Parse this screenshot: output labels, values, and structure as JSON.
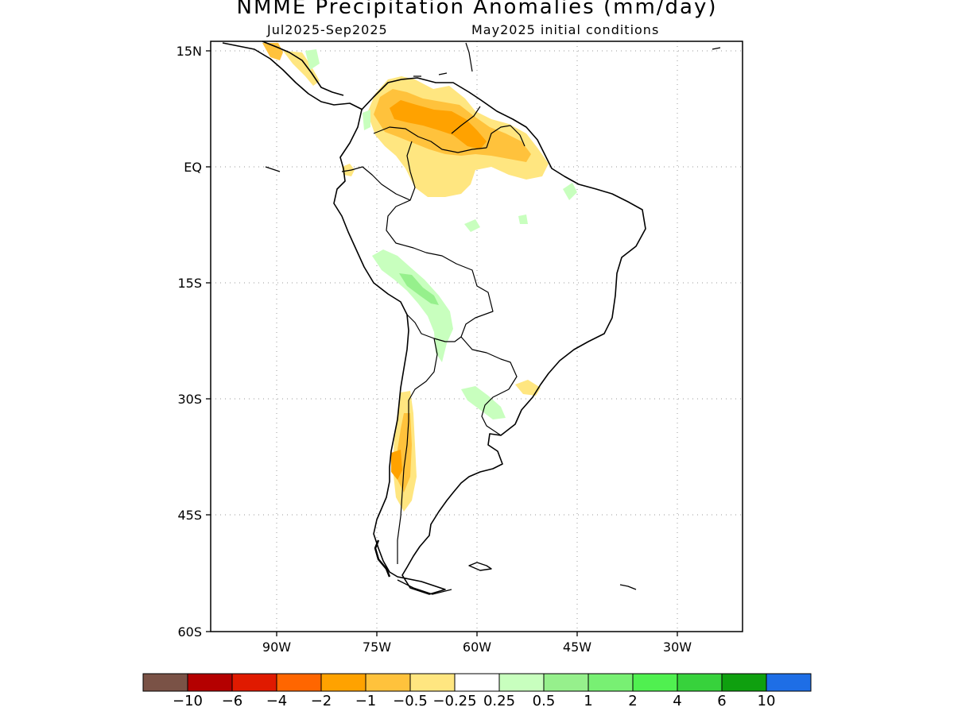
{
  "title": "NMME Precipitation Anomalies (mm/day)",
  "subtitle_left": "Jul2025-Sep2025",
  "subtitle_right": "May2025 initial conditions",
  "lat_labels": [
    "15N",
    "EQ",
    "15S",
    "30S",
    "45S",
    "60S"
  ],
  "lon_labels": [
    "90W",
    "75W",
    "60W",
    "45W",
    "30W"
  ],
  "colorbar": {
    "colors": [
      "#7a5246",
      "#b40000",
      "#e01a00",
      "#ff6600",
      "#ffa200",
      "#ffc23c",
      "#ffe680",
      "#ffffff",
      "#c8ffbe",
      "#96f08c",
      "#78f073",
      "#50f050",
      "#37d23c",
      "#0fa00f",
      "#1e6ee6"
    ],
    "labels": [
      "-10",
      "-6",
      "-4",
      "-2",
      "-1",
      "-0.5",
      "-0.25",
      "0.25",
      "0.5",
      "1",
      "2",
      "4",
      "6",
      "10"
    ]
  }
}
